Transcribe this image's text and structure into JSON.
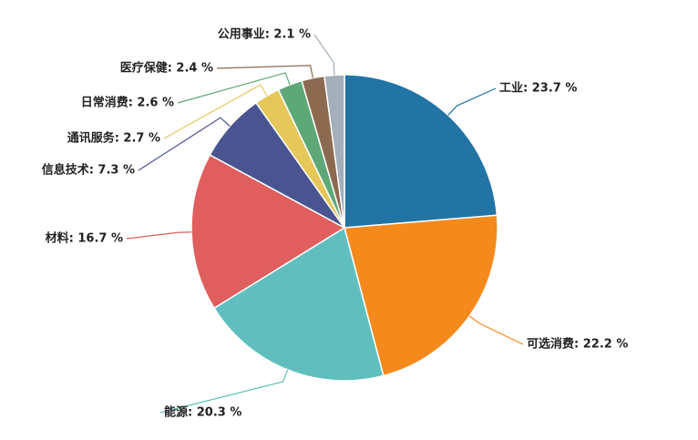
{
  "chart_data": {
    "type": "pie",
    "labels": [
      "工业: 23.7 %",
      "可选消费: 22.2 %",
      "能源: 20.3 %",
      "材料: 16.7 %",
      "信息技术: 7.3 %",
      "通讯服务: 2.7 %",
      "日常消费: 2.6 %",
      "医疗保健: 2.4 %",
      "公用事业: 2.1 %"
    ],
    "values": [
      23.7,
      22.2,
      20.3,
      16.7,
      7.3,
      2.7,
      2.6,
      2.4,
      2.1
    ],
    "colors": [
      "#2274a5",
      "#f4891c",
      "#60bfbe",
      "#e05e5e",
      "#4a5490",
      "#e6c75a",
      "#5ea878",
      "#8c6a50",
      "#a3afba"
    ]
  }
}
